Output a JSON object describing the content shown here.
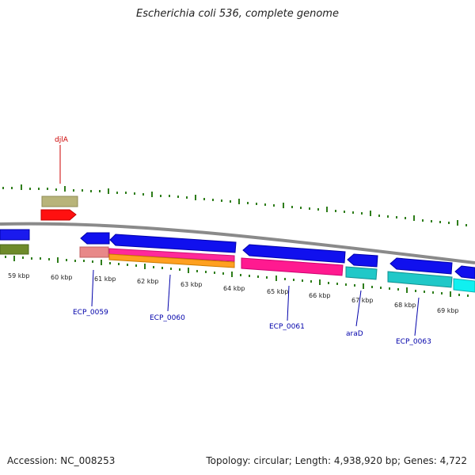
{
  "title": "Escherichia coli 536, complete genome",
  "footer": {
    "accession": "Accession: NC_008253",
    "summary": "Topology: circular; Length: 4,938,920 bp; Genes: 4,722"
  },
  "colors": {
    "backbone": "#888888",
    "tick": "#2e7d1a",
    "gene_forward": "#0000ee",
    "label_blue": "#0000aa",
    "label_red": "#cc0000"
  },
  "kbp_labels": [
    {
      "kbp": 59,
      "text": "59 kbp"
    },
    {
      "kbp": 60,
      "text": "60 kbp"
    },
    {
      "kbp": 61,
      "text": "61 kbp"
    },
    {
      "kbp": 62,
      "text": "62 kbp"
    },
    {
      "kbp": 63,
      "text": "63 kbp"
    },
    {
      "kbp": 64,
      "text": "64 kbp"
    },
    {
      "kbp": 65,
      "text": "65 kbp"
    },
    {
      "kbp": 66,
      "text": "66 kbp"
    },
    {
      "kbp": 67,
      "text": "67 kbp"
    },
    {
      "kbp": 68,
      "text": "68 kbp"
    },
    {
      "kbp": 69,
      "text": "69 kbp"
    }
  ],
  "gene_labels": [
    {
      "name": "djlA",
      "color": "red"
    },
    {
      "name": "ECP_0059",
      "color": "blue"
    },
    {
      "name": "ECP_0060",
      "color": "blue"
    },
    {
      "name": "ECP_0061",
      "color": "blue"
    },
    {
      "name": "araD",
      "color": "blue"
    },
    {
      "name": "ECP_0063",
      "color": "blue"
    }
  ]
}
